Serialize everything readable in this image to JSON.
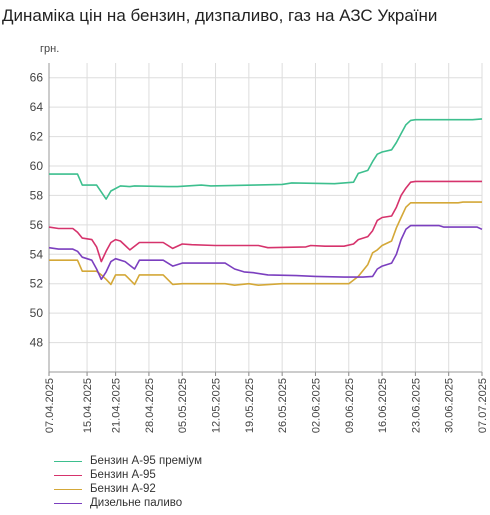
{
  "title": "Динаміка цін на бензин, дизпаливо, газ на АЗС України",
  "chart_data": {
    "type": "line",
    "title": "Динаміка цін на бензин, дизпаливо, газ на АЗС України",
    "ylabel": "грн.",
    "xlabel": "",
    "ylim": [
      46,
      67
    ],
    "yticks": [
      48,
      50,
      52,
      54,
      56,
      58,
      60,
      62,
      64,
      66
    ],
    "xlim": [
      "07.04.2025",
      "07.07.2025"
    ],
    "xticks": [
      "07.04.2025",
      "15.04.2025",
      "21.04.2025",
      "28.04.2025",
      "05.05.2025",
      "12.05.2025",
      "19.05.2025",
      "26.05.2025",
      "02.06.2025",
      "09.06.2025",
      "16.06.2025",
      "23.06.2025",
      "30.06.2025",
      "07.07.2025"
    ],
    "grid": true,
    "legend": "bottom-left",
    "series": [
      {
        "name": "Бензин А-95 преміум",
        "color": "#3dbf8e",
        "points": [
          [
            "2025-04-07",
            59.45
          ],
          [
            "2025-04-13",
            59.45
          ],
          [
            "2025-04-14",
            58.7
          ],
          [
            "2025-04-17",
            58.7
          ],
          [
            "2025-04-19",
            57.75
          ],
          [
            "2025-04-20",
            58.3
          ],
          [
            "2025-04-22",
            58.65
          ],
          [
            "2025-04-24",
            58.6
          ],
          [
            "2025-04-25",
            58.65
          ],
          [
            "2025-05-02",
            58.6
          ],
          [
            "2025-05-04",
            58.6
          ],
          [
            "2025-05-09",
            58.7
          ],
          [
            "2025-05-11",
            58.65
          ],
          [
            "2025-05-20",
            58.7
          ],
          [
            "2025-05-26",
            58.75
          ],
          [
            "2025-05-28",
            58.85
          ],
          [
            "2025-06-06",
            58.8
          ],
          [
            "2025-06-08",
            58.85
          ],
          [
            "2025-06-10",
            58.9
          ],
          [
            "2025-06-11",
            59.5
          ],
          [
            "2025-06-13",
            59.7
          ],
          [
            "2025-06-14",
            60.3
          ],
          [
            "2025-06-15",
            60.8
          ],
          [
            "2025-06-16",
            60.95
          ],
          [
            "2025-06-18",
            61.1
          ],
          [
            "2025-06-19",
            61.6
          ],
          [
            "2025-06-20",
            62.2
          ],
          [
            "2025-06-21",
            62.8
          ],
          [
            "2025-06-22",
            63.1
          ],
          [
            "2025-06-23",
            63.15
          ],
          [
            "2025-07-05",
            63.15
          ],
          [
            "2025-07-07",
            63.2
          ]
        ]
      },
      {
        "name": "Бензин А-95",
        "color": "#d6336c",
        "points": [
          [
            "2025-04-07",
            55.85
          ],
          [
            "2025-04-09",
            55.75
          ],
          [
            "2025-04-12",
            55.75
          ],
          [
            "2025-04-13",
            55.5
          ],
          [
            "2025-04-14",
            55.1
          ],
          [
            "2025-04-16",
            55.0
          ],
          [
            "2025-04-17",
            54.5
          ],
          [
            "2025-04-18",
            53.5
          ],
          [
            "2025-04-19",
            54.2
          ],
          [
            "2025-04-20",
            54.8
          ],
          [
            "2025-04-21",
            55.0
          ],
          [
            "2025-04-22",
            54.9
          ],
          [
            "2025-04-24",
            54.3
          ],
          [
            "2025-04-26",
            54.8
          ],
          [
            "2025-05-01",
            54.8
          ],
          [
            "2025-05-03",
            54.4
          ],
          [
            "2025-05-05",
            54.7
          ],
          [
            "2025-05-07",
            54.65
          ],
          [
            "2025-05-12",
            54.6
          ],
          [
            "2025-05-21",
            54.6
          ],
          [
            "2025-05-23",
            54.45
          ],
          [
            "2025-05-31",
            54.5
          ],
          [
            "2025-06-01",
            54.6
          ],
          [
            "2025-06-04",
            54.55
          ],
          [
            "2025-06-08",
            54.55
          ],
          [
            "2025-06-10",
            54.7
          ],
          [
            "2025-06-11",
            55.0
          ],
          [
            "2025-06-13",
            55.2
          ],
          [
            "2025-06-14",
            55.6
          ],
          [
            "2025-06-15",
            56.3
          ],
          [
            "2025-06-16",
            56.5
          ],
          [
            "2025-06-18",
            56.6
          ],
          [
            "2025-06-19",
            57.2
          ],
          [
            "2025-06-20",
            58.0
          ],
          [
            "2025-06-21",
            58.5
          ],
          [
            "2025-06-22",
            58.9
          ],
          [
            "2025-06-23",
            58.95
          ],
          [
            "2025-07-07",
            58.95
          ]
        ]
      },
      {
        "name": "Бензин А-92",
        "color": "#d4a838",
        "points": [
          [
            "2025-04-07",
            53.6
          ],
          [
            "2025-04-13",
            53.6
          ],
          [
            "2025-04-14",
            52.85
          ],
          [
            "2025-04-17",
            52.85
          ],
          [
            "2025-04-18",
            52.6
          ],
          [
            "2025-04-19",
            52.3
          ],
          [
            "2025-04-20",
            51.95
          ],
          [
            "2025-04-21",
            52.6
          ],
          [
            "2025-04-23",
            52.6
          ],
          [
            "2025-04-25",
            51.95
          ],
          [
            "2025-04-26",
            52.6
          ],
          [
            "2025-05-01",
            52.6
          ],
          [
            "2025-05-03",
            51.95
          ],
          [
            "2025-05-05",
            52.0
          ],
          [
            "2025-05-14",
            52.0
          ],
          [
            "2025-05-16",
            51.9
          ],
          [
            "2025-05-19",
            52.0
          ],
          [
            "2025-05-21",
            51.9
          ],
          [
            "2025-05-26",
            52.0
          ],
          [
            "2025-06-09",
            52.0
          ],
          [
            "2025-06-11",
            52.5
          ],
          [
            "2025-06-13",
            53.3
          ],
          [
            "2025-06-14",
            54.1
          ],
          [
            "2025-06-15",
            54.3
          ],
          [
            "2025-06-16",
            54.6
          ],
          [
            "2025-06-18",
            54.9
          ],
          [
            "2025-06-19",
            55.8
          ],
          [
            "2025-06-20",
            56.5
          ],
          [
            "2025-06-21",
            57.2
          ],
          [
            "2025-06-22",
            57.5
          ],
          [
            "2025-07-02",
            57.5
          ],
          [
            "2025-07-03",
            57.55
          ],
          [
            "2025-07-07",
            57.55
          ]
        ]
      },
      {
        "name": "Дизельне паливо",
        "color": "#7b3fbf",
        "points": [
          [
            "2025-04-07",
            54.45
          ],
          [
            "2025-04-09",
            54.35
          ],
          [
            "2025-04-12",
            54.35
          ],
          [
            "2025-04-13",
            54.2
          ],
          [
            "2025-04-14",
            53.8
          ],
          [
            "2025-04-16",
            53.6
          ],
          [
            "2025-04-17",
            53.0
          ],
          [
            "2025-04-18",
            52.3
          ],
          [
            "2025-04-19",
            52.8
          ],
          [
            "2025-04-20",
            53.5
          ],
          [
            "2025-04-21",
            53.7
          ],
          [
            "2025-04-23",
            53.5
          ],
          [
            "2025-04-25",
            53.0
          ],
          [
            "2025-04-26",
            53.6
          ],
          [
            "2025-05-01",
            53.6
          ],
          [
            "2025-05-03",
            53.2
          ],
          [
            "2025-05-05",
            53.4
          ],
          [
            "2025-05-14",
            53.4
          ],
          [
            "2025-05-16",
            53.0
          ],
          [
            "2025-05-18",
            52.8
          ],
          [
            "2025-05-20",
            52.75
          ],
          [
            "2025-05-23",
            52.6
          ],
          [
            "2025-05-29",
            52.55
          ],
          [
            "2025-06-02",
            52.5
          ],
          [
            "2025-06-08",
            52.45
          ],
          [
            "2025-06-12",
            52.45
          ],
          [
            "2025-06-14",
            52.5
          ],
          [
            "2025-06-15",
            53.0
          ],
          [
            "2025-06-16",
            53.2
          ],
          [
            "2025-06-18",
            53.4
          ],
          [
            "2025-06-19",
            54.0
          ],
          [
            "2025-06-20",
            55.0
          ],
          [
            "2025-06-21",
            55.7
          ],
          [
            "2025-06-22",
            55.95
          ],
          [
            "2025-06-28",
            55.95
          ],
          [
            "2025-06-29",
            55.85
          ],
          [
            "2025-07-06",
            55.85
          ],
          [
            "2025-07-07",
            55.7
          ]
        ]
      }
    ]
  }
}
